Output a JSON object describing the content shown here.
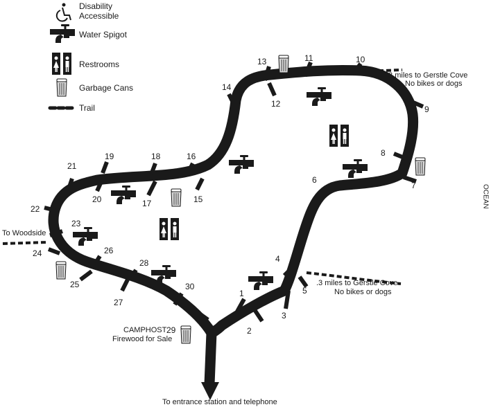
{
  "legend": {
    "disability": "Disability",
    "accessible": "Accessible",
    "water": "Water Spigot",
    "restrooms": "Restrooms",
    "garbage": "Garbage Cans",
    "trail": "Trail"
  },
  "sites": [
    "1",
    "2",
    "3",
    "4",
    "5",
    "6",
    "7",
    "8",
    "9",
    "10",
    "11",
    "12",
    "13",
    "14",
    "15",
    "16",
    "17",
    "18",
    "19",
    "20",
    "21",
    "22",
    "23",
    "24",
    "25",
    "26",
    "27",
    "28",
    "29",
    "30"
  ],
  "notes": {
    "gerstle_top_line1": ".3 miles to Gerstle Cove",
    "gerstle_top_line2": "No bikes or dogs",
    "gerstle_bottom_line1": ".3 miles to Gerstle Cove",
    "gerstle_bottom_line2": "No bikes or dogs",
    "woodside": "To Woodside",
    "camphost_line1": "CAMPHOST",
    "camphost_line2": "Firewood for Sale",
    "entrance": "To entrance station and telephone",
    "ocean": "OCEAN"
  },
  "colors": {
    "road": "#1a1a1a",
    "background": "#ffffff",
    "can": "#d9d9d9"
  },
  "icons": [
    "wheelchair-icon",
    "water-spigot-icon",
    "restroom-icon",
    "garbage-can-icon",
    "trail-dash-icon"
  ]
}
